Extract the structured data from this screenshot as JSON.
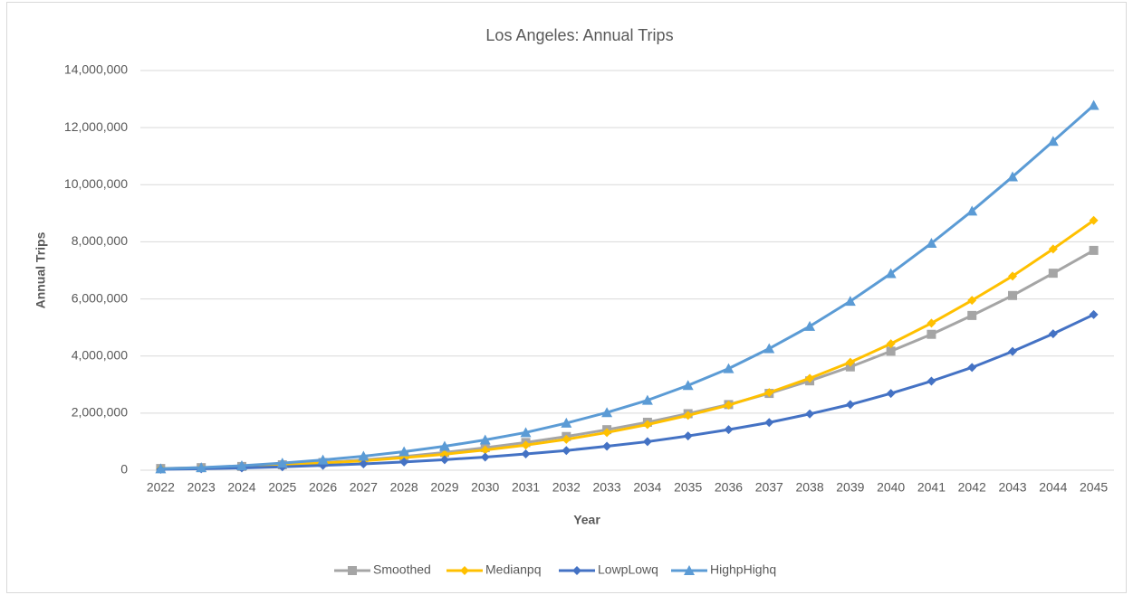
{
  "chart_data": {
    "type": "line",
    "title": "Los Angeles: Annual Trips",
    "x_label": "Year",
    "y_label": "Annual Trips",
    "categories": [
      "2022",
      "2023",
      "2024",
      "2025",
      "2026",
      "2027",
      "2028",
      "2029",
      "2030",
      "2031",
      "2032",
      "2033",
      "2034",
      "2035",
      "2036",
      "2037",
      "2038",
      "2039",
      "2040",
      "2041",
      "2042",
      "2043",
      "2044",
      "2045"
    ],
    "series": [
      {
        "name": "Smoothed",
        "color": "#a5a5a5",
        "marker": "square",
        "values": [
          60000,
          90000,
          130000,
          190000,
          270000,
          360000,
          480000,
          620000,
          790000,
          970000,
          1180000,
          1420000,
          1680000,
          1980000,
          2300000,
          2690000,
          3130000,
          3620000,
          4170000,
          4760000,
          5420000,
          6120000,
          6900000,
          7700000
        ]
      },
      {
        "name": "Medianpq",
        "color": "#ffc000",
        "marker": "diamond",
        "values": [
          50000,
          80000,
          120000,
          180000,
          250000,
          330000,
          440000,
          560000,
          710000,
          880000,
          1080000,
          1320000,
          1600000,
          1920000,
          2280000,
          2720000,
          3220000,
          3780000,
          4430000,
          5150000,
          5950000,
          6800000,
          7750000,
          8750000
        ]
      },
      {
        "name": "LowpLowq",
        "color": "#4472c4",
        "marker": "diamond",
        "values": [
          30000,
          50000,
          80000,
          120000,
          170000,
          220000,
          290000,
          370000,
          460000,
          570000,
          690000,
          840000,
          1000000,
          1200000,
          1420000,
          1670000,
          1970000,
          2300000,
          2690000,
          3120000,
          3600000,
          4160000,
          4780000,
          5450000
        ]
      },
      {
        "name": "HighpHighq",
        "color": "#5b9bd5",
        "marker": "triangle",
        "values": [
          50000,
          90000,
          160000,
          250000,
          360000,
          490000,
          650000,
          840000,
          1060000,
          1320000,
          1650000,
          2020000,
          2450000,
          2970000,
          3560000,
          4260000,
          5040000,
          5920000,
          6890000,
          7950000,
          9080000,
          10280000,
          11520000,
          12780000
        ]
      }
    ],
    "ylim": [
      0,
      14000000
    ],
    "yticks": [
      0,
      {
        "value": 2000000,
        "label": "2,000,000"
      },
      {
        "value": 4000000,
        "label": "4,000,000"
      },
      {
        "value": 6000000,
        "label": "6,000,000"
      },
      {
        "value": 8000000,
        "label": "8,000,000"
      },
      {
        "value": 10000000,
        "label": "10,000,000"
      },
      {
        "value": 12000000,
        "label": "12,000,000"
      },
      {
        "value": 14000000,
        "label": "14,000,000"
      }
    ],
    "grid": true,
    "legend": "bottom"
  }
}
